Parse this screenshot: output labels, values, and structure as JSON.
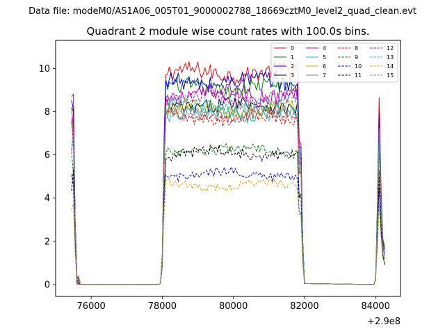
{
  "figure": {
    "suptitle": "Data file: modeM0/AS1A06_005T01_9000002788_18669cztM0_level2_quad_clean.evt"
  },
  "chart_data": {
    "type": "line",
    "title": "Quadrant 2 module wise count rates with 100.0s bins.",
    "xlabel": "",
    "ylabel": "",
    "x_offset_label": "+2.9e8",
    "x_offset": 290000000,
    "xlim": [
      75000,
      84700
    ],
    "ylim": [
      -0.55,
      11.3
    ],
    "xticks": [
      76000,
      78000,
      80000,
      82000,
      84000
    ],
    "xtick_labels": [
      "76000",
      "78000",
      "80000",
      "82000",
      "84000"
    ],
    "yticks": [
      0,
      2,
      4,
      6,
      8,
      10
    ],
    "ytick_labels": [
      "0",
      "2",
      "4",
      "6",
      "8",
      "10"
    ],
    "grid": false,
    "legend_position": "top-right",
    "segments": [
      {
        "start": 75450,
        "end": 75650,
        "step": 50
      },
      {
        "start": 78050,
        "end": 81950,
        "step": 50
      },
      {
        "start": 84050,
        "end": 84250,
        "step": 50
      }
    ],
    "series": [
      {
        "name": "0",
        "color": "#ff0000",
        "style": "solid",
        "level": 9.8
      },
      {
        "name": "1",
        "color": "#008000",
        "style": "solid",
        "level": 9.1
      },
      {
        "name": "2",
        "color": "#0000ff",
        "style": "solid",
        "level": 9.4
      },
      {
        "name": "3",
        "color": "#000000",
        "style": "solid",
        "level": 8.3
      },
      {
        "name": "4",
        "color": "#bf00bf",
        "style": "solid",
        "level": 8.8
      },
      {
        "name": "5",
        "color": "#20c0c0",
        "style": "solid",
        "level": 7.9
      },
      {
        "name": "6",
        "color": "#c0b000",
        "style": "solid",
        "level": 8.1
      },
      {
        "name": "7",
        "color": "#808080",
        "style": "solid",
        "level": 7.9
      },
      {
        "name": "8",
        "color": "#ff0000",
        "style": "dashed",
        "level": 7.7
      },
      {
        "name": "9",
        "color": "#008000",
        "style": "dashed",
        "level": 6.2
      },
      {
        "name": "10",
        "color": "#0000ff",
        "style": "dashed",
        "level": 5.1
      },
      {
        "name": "11",
        "color": "#000000",
        "style": "dashed",
        "level": 6.1
      },
      {
        "name": "12",
        "color": "#bf00bf",
        "style": "dashed",
        "level": 8.6
      },
      {
        "name": "13",
        "color": "#20c0c0",
        "style": "dashed",
        "level": 8.3
      },
      {
        "name": "14",
        "color": "#c0b000",
        "style": "dashed",
        "level": 4.6
      },
      {
        "name": "15",
        "color": "#808080",
        "style": "dashed",
        "level": 8.0
      }
    ]
  }
}
